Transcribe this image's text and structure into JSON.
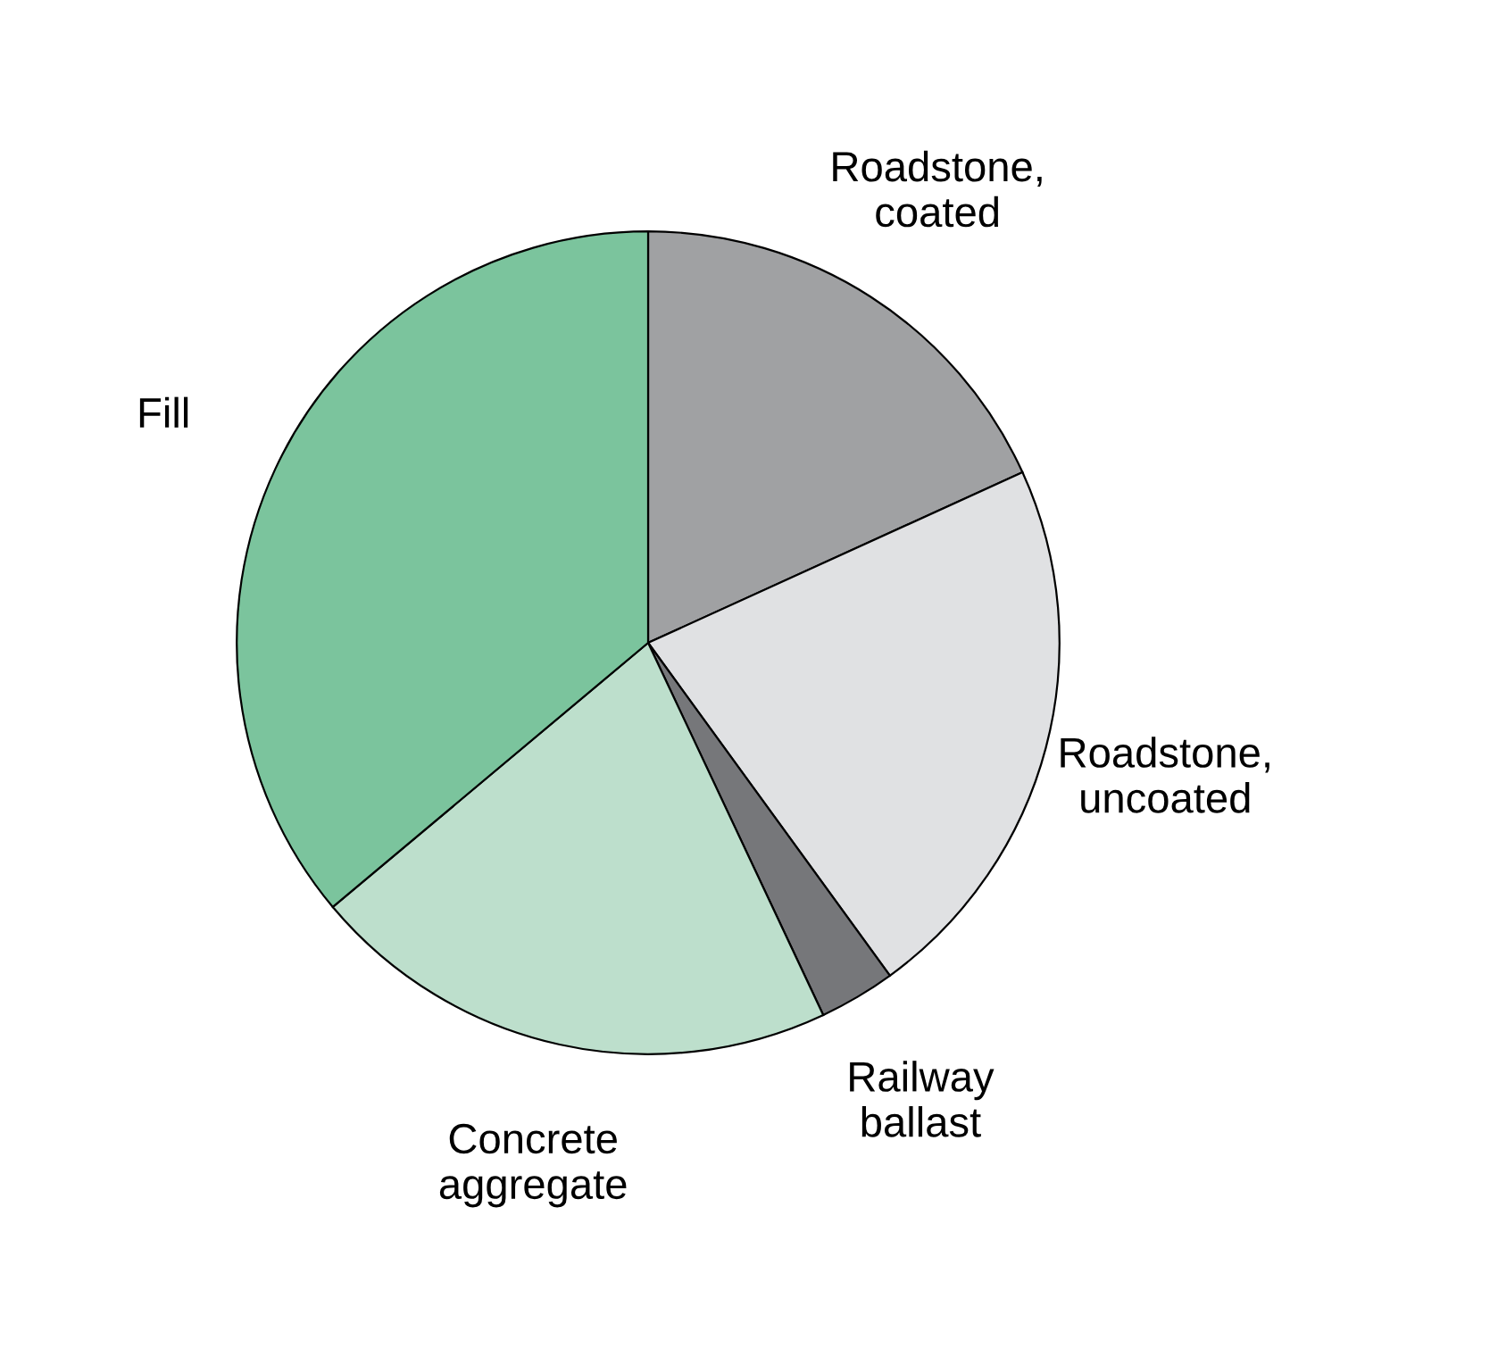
{
  "chart_data": {
    "type": "pie",
    "categories": [
      "Roadstone,\ncoated",
      "Roadstone,\nuncoated",
      "Railway\nballast",
      "Concrete\naggregate",
      "Fill"
    ],
    "values": [
      18.2,
      21.8,
      3.0,
      20.9,
      36.1
    ],
    "colors": [
      "#a0a1a3",
      "#e0e1e3",
      "#76777a",
      "#bddfcc",
      "#7bc49d"
    ]
  }
}
